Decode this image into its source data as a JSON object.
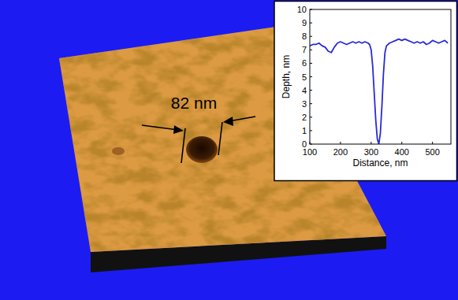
{
  "chart_data": {
    "type": "line",
    "xlabel": "Distance, nm",
    "ylabel": "Depth, nm",
    "annotations": [
      "82 nm"
    ],
    "x": [
      100,
      110,
      120,
      130,
      140,
      150,
      160,
      170,
      180,
      190,
      200,
      210,
      220,
      230,
      240,
      250,
      260,
      270,
      280,
      290,
      295,
      300,
      305,
      310,
      315,
      320,
      325,
      330,
      335,
      340,
      345,
      350,
      360,
      370,
      380,
      390,
      400,
      410,
      420,
      430,
      440,
      450,
      460,
      470,
      480,
      490,
      500,
      510,
      520,
      530,
      540,
      550
    ],
    "values": [
      7.3,
      7.4,
      7.4,
      7.5,
      7.3,
      7.2,
      6.9,
      6.8,
      7.2,
      7.5,
      7.6,
      7.5,
      7.4,
      7.5,
      7.6,
      7.5,
      7.6,
      7.5,
      7.6,
      7.5,
      7.4,
      7.0,
      5.8,
      3.8,
      1.8,
      0.4,
      0.0,
      0.8,
      2.8,
      5.2,
      6.8,
      7.3,
      7.5,
      7.6,
      7.7,
      7.8,
      7.7,
      7.8,
      7.7,
      7.6,
      7.5,
      7.6,
      7.5,
      7.6,
      7.4,
      7.5,
      7.7,
      7.6,
      7.5,
      7.6,
      7.7,
      7.5
    ],
    "color": "#2a2ad6",
    "xlim": [
      100,
      560
    ],
    "xticks": [
      100,
      200,
      300,
      400,
      500
    ],
    "ylim": [
      0,
      10
    ],
    "yticks": [
      0,
      1,
      2,
      3,
      4,
      5,
      6,
      7,
      8,
      9,
      10
    ],
    "grid": false
  }
}
